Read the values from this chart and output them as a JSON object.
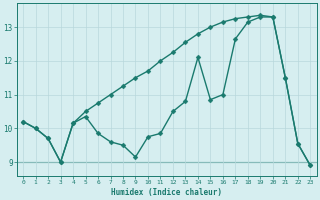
{
  "xlabel": "Humidex (Indice chaleur)",
  "background_color": "#d6eef0",
  "line_color": "#1a7a6e",
  "grid_color": "#b8d8dc",
  "xlim": [
    -0.5,
    23.5
  ],
  "ylim": [
    8.6,
    13.7
  ],
  "yticks": [
    9,
    10,
    11,
    12,
    13
  ],
  "xticks": [
    0,
    1,
    2,
    3,
    4,
    5,
    6,
    7,
    8,
    9,
    10,
    11,
    12,
    13,
    14,
    15,
    16,
    17,
    18,
    19,
    20,
    21,
    22,
    23
  ],
  "series1_x": [
    0,
    1,
    2,
    3,
    4,
    5,
    6,
    7,
    8,
    9,
    10,
    11,
    12,
    13,
    14,
    15,
    16,
    17,
    18,
    19,
    20,
    21,
    22,
    23
  ],
  "series1_y": [
    10.2,
    10.0,
    9.7,
    9.0,
    10.15,
    10.35,
    9.85,
    9.6,
    9.5,
    9.15,
    9.75,
    9.85,
    10.5,
    10.8,
    12.1,
    10.85,
    11.0,
    12.65,
    13.15,
    13.3,
    13.3,
    11.5,
    9.55,
    8.9
  ],
  "series2_x": [
    0,
    1,
    2,
    3,
    4,
    5,
    6,
    7,
    8,
    9,
    10,
    11,
    12,
    13,
    14,
    15,
    16,
    17,
    18,
    19,
    20,
    21,
    22,
    23
  ],
  "series2_y": [
    10.2,
    10.0,
    9.7,
    9.0,
    10.15,
    10.5,
    10.75,
    11.0,
    11.25,
    11.5,
    11.7,
    12.0,
    12.25,
    12.55,
    12.8,
    13.0,
    13.15,
    13.25,
    13.3,
    13.35,
    13.3,
    11.5,
    9.55,
    8.9
  ],
  "marker": "D",
  "markersize": 2.5,
  "linewidth": 1.0
}
